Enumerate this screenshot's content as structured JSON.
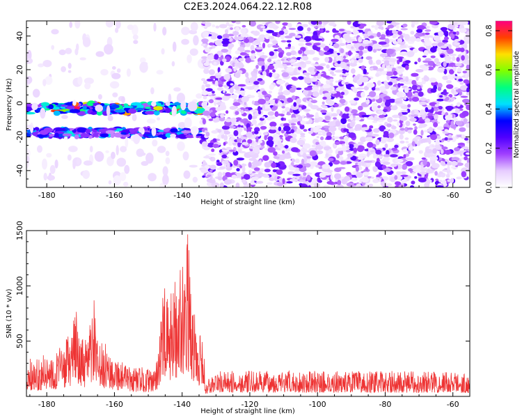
{
  "chart_data": [
    {
      "type": "heatmap",
      "title": "C2E3.2024.064.22.12.R08",
      "xlabel": "Height of straight line (km)",
      "ylabel": "Frequency (Hz)",
      "colorbar_label": "Normalized spectral amplitude",
      "xlim": [
        -186,
        -55
      ],
      "ylim": [
        -50,
        49
      ],
      "x_ticks": [
        -180,
        -160,
        -140,
        -120,
        -100,
        -80,
        -60
      ],
      "y_ticks": [
        -40,
        -20,
        0,
        20,
        40
      ],
      "colorbar_ticks": [
        0.0,
        0.2,
        0.4,
        0.6,
        0.8
      ],
      "colorbar_range": [
        0,
        0.85
      ],
      "colormap_stops": [
        "#ffffff",
        "#e6ccff",
        "#a040ff",
        "#5000ff",
        "#0000ff",
        "#00e0ff",
        "#00ff80",
        "#80ff00",
        "#ffe000",
        "#ff4000",
        "#ff0080"
      ],
      "features": [
        {
          "x": [
            -186,
            -134
          ],
          "y": [
            -6,
            0
          ],
          "level": 0.45
        },
        {
          "x": [
            -186,
            -134
          ],
          "y": [
            -20,
            -15
          ],
          "level": 0.25
        },
        {
          "x": [
            -186,
            -134
          ],
          "y": [
            -50,
            49
          ],
          "level": 0.05
        },
        {
          "x": [
            -134,
            -55
          ],
          "y": [
            -50,
            49
          ],
          "level": 0.15
        }
      ]
    },
    {
      "type": "line",
      "xlabel": "Height of straight line (km)",
      "ylabel": "SNR (10 * v/v)",
      "xlim": [
        -186,
        -55
      ],
      "ylim": [
        0,
        1500
      ],
      "x_ticks": [
        -180,
        -160,
        -140,
        -120,
        -100,
        -80,
        -60
      ],
      "y_ticks": [
        500,
        1000,
        1500
      ],
      "line_color": "#ee3333",
      "envelope_x": [
        -186,
        -180,
        -175,
        -172,
        -171,
        -170,
        -168,
        -167,
        -166,
        -165,
        -162,
        -160,
        -156,
        -152,
        -148,
        -146,
        -145,
        -144,
        -142,
        -141,
        -140,
        -139,
        -138,
        -137,
        -136,
        -135,
        -133.5,
        -133,
        -130,
        -120,
        -100,
        -80,
        -60,
        -55
      ],
      "envelope_y": [
        340,
        380,
        470,
        700,
        880,
        520,
        520,
        760,
        900,
        500,
        470,
        400,
        270,
        270,
        230,
        900,
        1000,
        850,
        1120,
        1150,
        1280,
        1500,
        1450,
        900,
        730,
        640,
        400,
        140,
        230,
        230,
        230,
        230,
        230,
        200
      ]
    }
  ]
}
